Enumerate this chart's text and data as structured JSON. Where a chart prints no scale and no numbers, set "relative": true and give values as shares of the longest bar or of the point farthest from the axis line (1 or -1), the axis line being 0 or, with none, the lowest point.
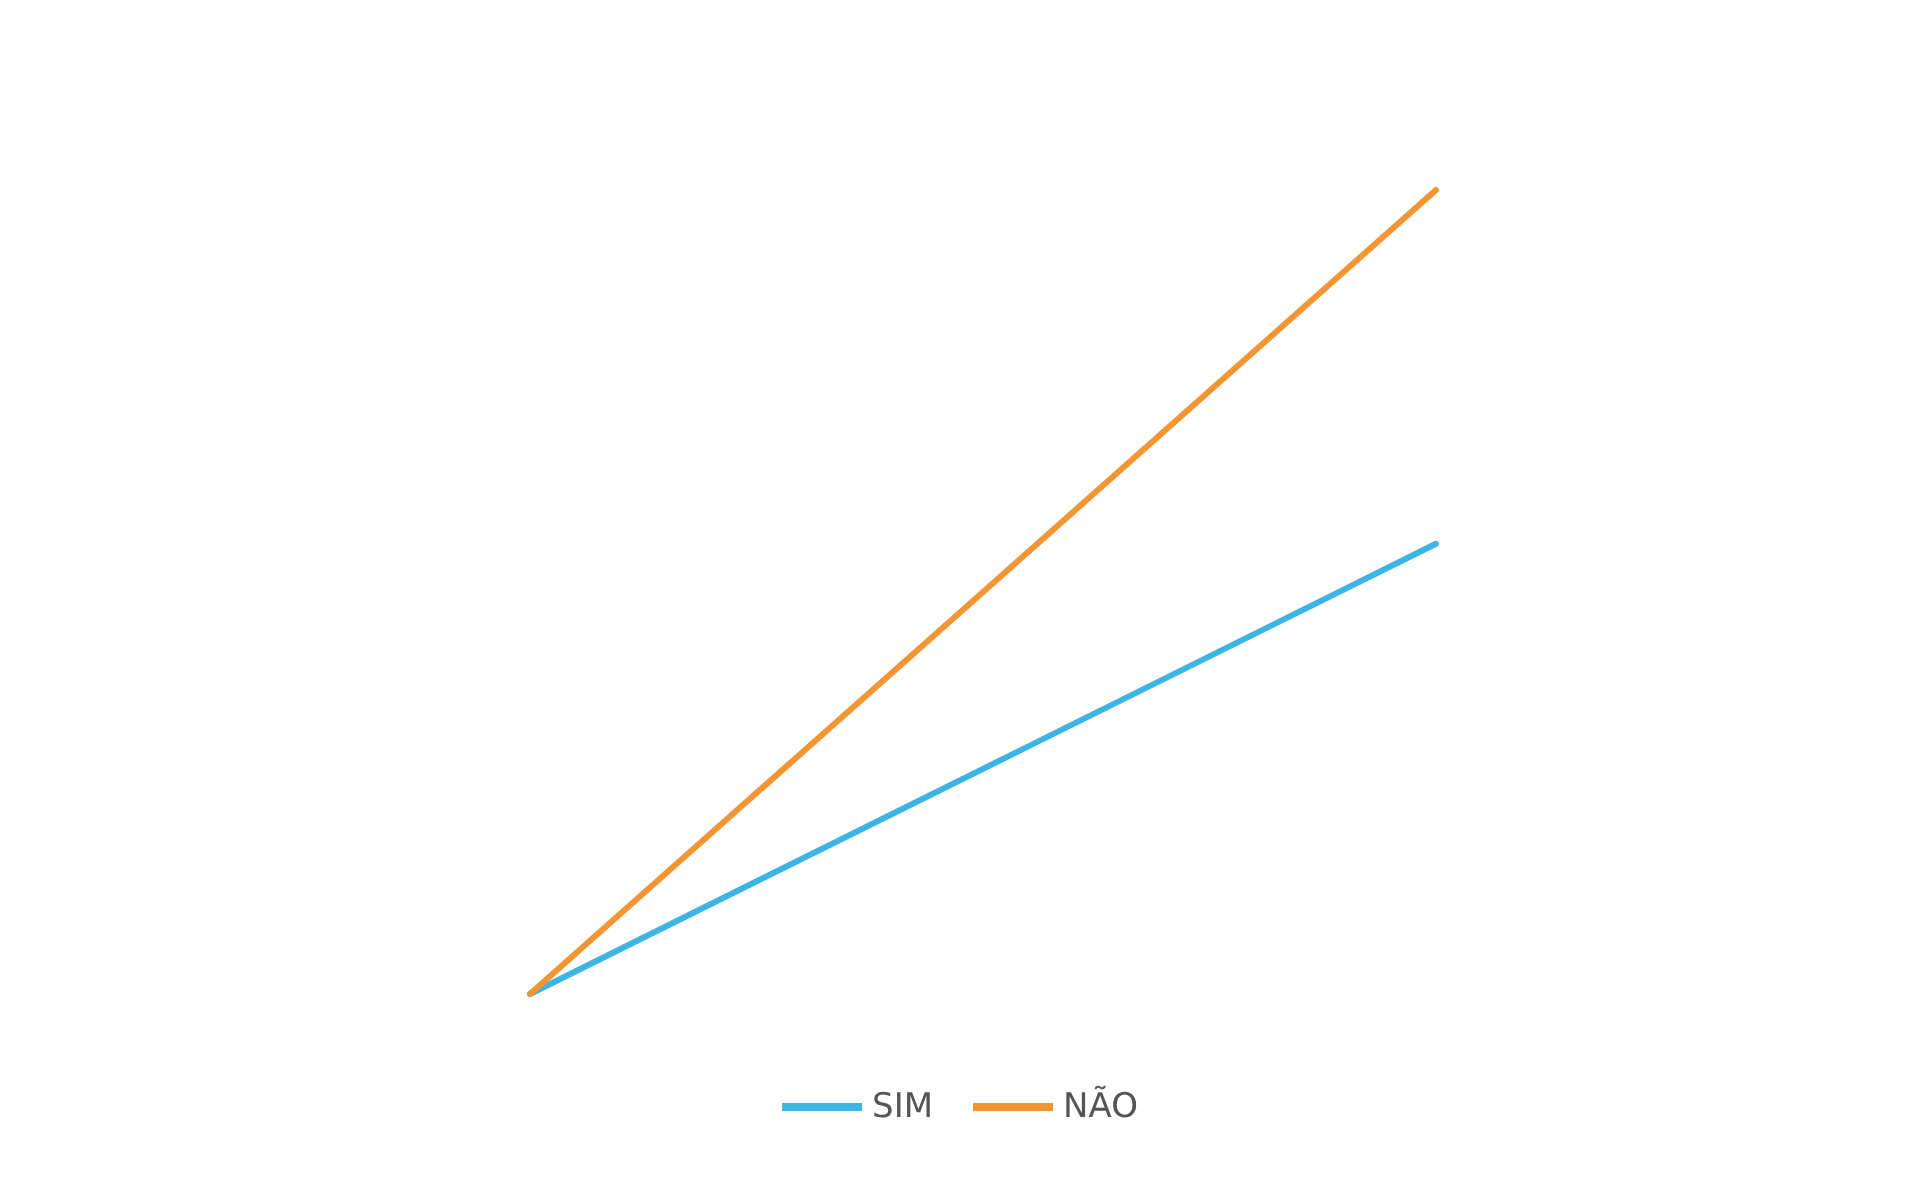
{
  "chart_data": {
    "type": "line",
    "relative": true,
    "categories": [
      null,
      null
    ],
    "series": [
      {
        "name": "SIM",
        "color": "#3db4e6",
        "values": [
          0,
          0.56
        ]
      },
      {
        "name": "NÃO",
        "color": "#f39533",
        "values": [
          0,
          1
        ]
      }
    ],
    "legend": "bottom",
    "grid": false,
    "marker": "none"
  }
}
